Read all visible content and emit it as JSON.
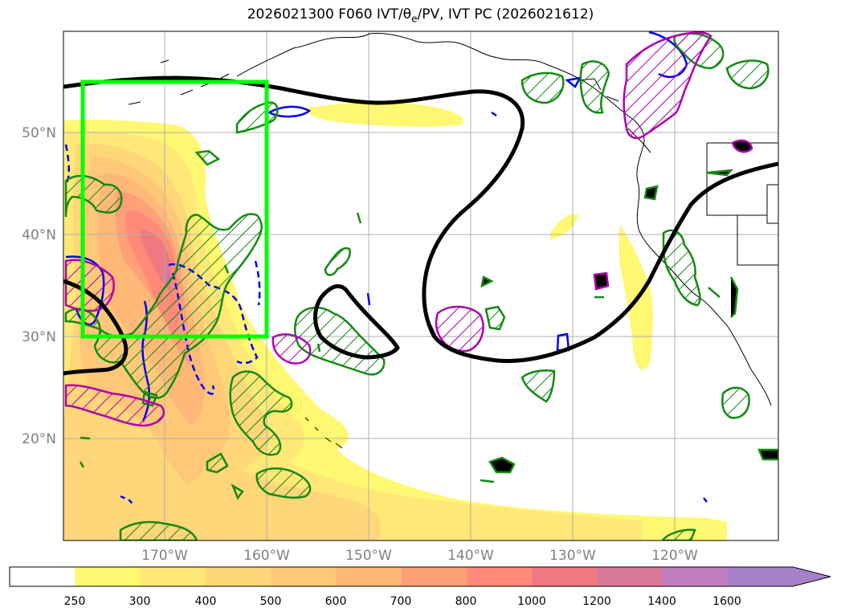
{
  "title": "2026021300 F060 IVT/θe/PV, IVT PC (2026021612)",
  "lat_labels": [
    "50°N",
    "40°N",
    "30°N",
    "20°N"
  ],
  "lon_labels": [
    "170°W",
    "160°W",
    "150°W",
    "140°W",
    "130°W",
    "120°W"
  ],
  "colorbar": {
    "levels": [
      "250",
      "300",
      "400",
      "500",
      "600",
      "700",
      "800",
      "1000",
      "1200",
      "1400",
      "1600"
    ],
    "colors": [
      "#ffffff",
      "#fff870",
      "#ffe878",
      "#ffd678",
      "#ffc878",
      "#ffb878",
      "#ffa078",
      "#ff8a78",
      "#f07880",
      "#d87898",
      "#c07ec0",
      "#a880c8"
    ]
  },
  "box": {
    "lat_min": 30,
    "lat_max": 55,
    "lon_min": -178,
    "lon_max": -160,
    "color": "#00ff00"
  }
}
